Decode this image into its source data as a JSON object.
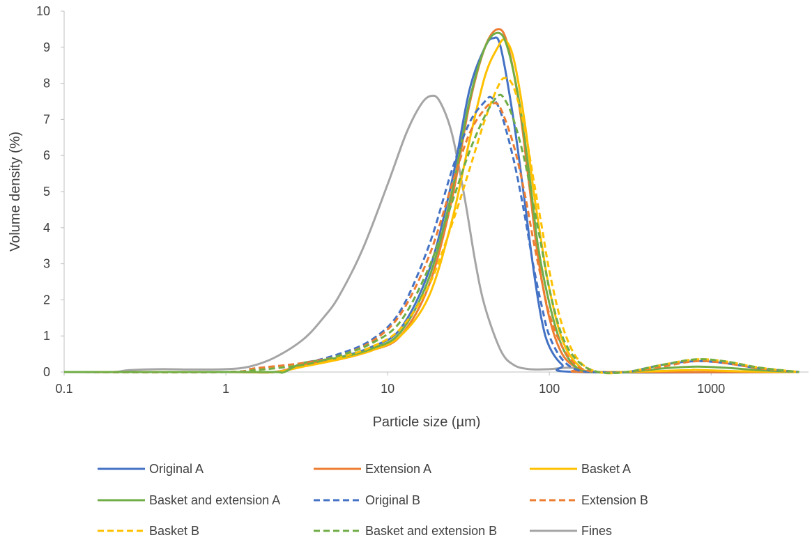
{
  "chart_data": {
    "type": "line",
    "title": "",
    "xlabel": "Particle size (µm)",
    "ylabel": "Volume density (%)",
    "x_scale": "log",
    "xlim": [
      0.1,
      4000
    ],
    "ylim": [
      0,
      10
    ],
    "x_ticks": [
      0.1,
      1,
      10,
      100,
      1000
    ],
    "x_tick_labels": [
      "0.1",
      "1",
      "10",
      "100",
      "1000"
    ],
    "y_ticks": [
      0,
      1,
      2,
      3,
      4,
      5,
      6,
      7,
      8,
      9,
      10
    ],
    "y_tick_labels": [
      "0",
      "1",
      "2",
      "3",
      "4",
      "5",
      "6",
      "7",
      "8",
      "9",
      "10"
    ],
    "grid": false,
    "legend_position": "bottom",
    "series": [
      {
        "name": "Original A",
        "color": "#4472C4",
        "dash": "solid",
        "points": [
          [
            0.1,
            0
          ],
          [
            1,
            0
          ],
          [
            2,
            0
          ],
          [
            3,
            0.2
          ],
          [
            5,
            0.4
          ],
          [
            8,
            0.7
          ],
          [
            12,
            1.2
          ],
          [
            18,
            2.8
          ],
          [
            25,
            5.3
          ],
          [
            32,
            7.8
          ],
          [
            40,
            9.0
          ],
          [
            45,
            9.25
          ],
          [
            50,
            9.0
          ],
          [
            60,
            7.0
          ],
          [
            70,
            4.8
          ],
          [
            80,
            2.8
          ],
          [
            90,
            1.4
          ],
          [
            100,
            0.7
          ],
          [
            120,
            0.2
          ],
          [
            150,
            0
          ],
          [
            3500,
            0
          ]
        ]
      },
      {
        "name": "Extension A",
        "color": "#ED7D31",
        "dash": "solid",
        "points": [
          [
            0.1,
            0
          ],
          [
            1,
            0
          ],
          [
            2,
            0
          ],
          [
            3,
            0.2
          ],
          [
            5,
            0.35
          ],
          [
            8,
            0.6
          ],
          [
            12,
            1.0
          ],
          [
            18,
            2.4
          ],
          [
            25,
            4.8
          ],
          [
            32,
            7.4
          ],
          [
            40,
            9.0
          ],
          [
            48,
            9.5
          ],
          [
            55,
            9.1
          ],
          [
            65,
            7.4
          ],
          [
            75,
            5.2
          ],
          [
            85,
            3.2
          ],
          [
            100,
            1.5
          ],
          [
            120,
            0.5
          ],
          [
            150,
            0.1
          ],
          [
            180,
            0
          ],
          [
            3500,
            0
          ]
        ]
      },
      {
        "name": "Basket A",
        "color": "#FFC000",
        "dash": "solid",
        "points": [
          [
            0.1,
            0
          ],
          [
            1,
            0
          ],
          [
            2,
            0
          ],
          [
            3,
            0.15
          ],
          [
            5,
            0.35
          ],
          [
            8,
            0.6
          ],
          [
            12,
            1.0
          ],
          [
            18,
            2.1
          ],
          [
            25,
            4.2
          ],
          [
            32,
            6.4
          ],
          [
            40,
            8.2
          ],
          [
            48,
            9.0
          ],
          [
            53,
            9.2
          ],
          [
            60,
            8.7
          ],
          [
            70,
            7.0
          ],
          [
            80,
            5.0
          ],
          [
            90,
            3.5
          ],
          [
            100,
            2.3
          ],
          [
            120,
            0.9
          ],
          [
            150,
            0.2
          ],
          [
            200,
            0
          ],
          [
            700,
            0.05
          ],
          [
            800,
            0.06
          ],
          [
            1500,
            0.02
          ],
          [
            3500,
            0
          ]
        ]
      },
      {
        "name": "Basket and extension A",
        "color": "#70AD47",
        "dash": "solid",
        "points": [
          [
            0.1,
            0
          ],
          [
            1,
            0
          ],
          [
            2,
            0
          ],
          [
            2.3,
            0
          ],
          [
            3,
            0.25
          ],
          [
            5,
            0.4
          ],
          [
            8,
            0.65
          ],
          [
            12,
            1.1
          ],
          [
            18,
            2.6
          ],
          [
            25,
            5.0
          ],
          [
            32,
            7.5
          ],
          [
            40,
            9.0
          ],
          [
            48,
            9.4
          ],
          [
            55,
            9.0
          ],
          [
            65,
            7.5
          ],
          [
            75,
            5.5
          ],
          [
            85,
            3.5
          ],
          [
            100,
            1.9
          ],
          [
            120,
            0.7
          ],
          [
            150,
            0.1
          ],
          [
            200,
            0
          ],
          [
            300,
            0
          ],
          [
            500,
            0.1
          ],
          [
            800,
            0.15
          ],
          [
            1200,
            0.12
          ],
          [
            2000,
            0.05
          ],
          [
            3500,
            0
          ]
        ]
      },
      {
        "name": "Original B",
        "color": "#4472C4",
        "dash": "dashed",
        "points": [
          [
            0.1,
            0
          ],
          [
            1,
            0
          ],
          [
            1.5,
            0.1
          ],
          [
            3,
            0.25
          ],
          [
            5,
            0.5
          ],
          [
            8,
            0.9
          ],
          [
            12,
            1.7
          ],
          [
            18,
            3.5
          ],
          [
            25,
            5.6
          ],
          [
            32,
            6.9
          ],
          [
            40,
            7.5
          ],
          [
            44,
            7.6
          ],
          [
            50,
            7.2
          ],
          [
            60,
            5.9
          ],
          [
            70,
            4.4
          ],
          [
            80,
            2.9
          ],
          [
            90,
            1.8
          ],
          [
            100,
            1.0
          ],
          [
            120,
            0.35
          ],
          [
            150,
            0.05
          ],
          [
            200,
            0
          ],
          [
            300,
            0
          ],
          [
            500,
            0.2
          ],
          [
            800,
            0.3
          ],
          [
            1200,
            0.25
          ],
          [
            2000,
            0.1
          ],
          [
            3500,
            0
          ]
        ]
      },
      {
        "name": "Extension B",
        "color": "#ED7D31",
        "dash": "dashed",
        "points": [
          [
            0.1,
            0
          ],
          [
            1,
            0
          ],
          [
            1.5,
            0.1
          ],
          [
            3,
            0.25
          ],
          [
            5,
            0.45
          ],
          [
            8,
            0.85
          ],
          [
            12,
            1.6
          ],
          [
            18,
            3.2
          ],
          [
            25,
            5.2
          ],
          [
            32,
            6.6
          ],
          [
            40,
            7.3
          ],
          [
            45,
            7.45
          ],
          [
            50,
            7.3
          ],
          [
            60,
            6.3
          ],
          [
            70,
            5.0
          ],
          [
            80,
            3.6
          ],
          [
            90,
            2.5
          ],
          [
            100,
            1.6
          ],
          [
            120,
            0.7
          ],
          [
            150,
            0.15
          ],
          [
            200,
            0
          ],
          [
            300,
            0
          ],
          [
            500,
            0.15
          ],
          [
            800,
            0.3
          ],
          [
            1200,
            0.25
          ],
          [
            2000,
            0.1
          ],
          [
            3500,
            0
          ]
        ]
      },
      {
        "name": "Basket B",
        "color": "#FFC000",
        "dash": "dashed",
        "points": [
          [
            0.1,
            0
          ],
          [
            1,
            0
          ],
          [
            1.5,
            0.05
          ],
          [
            3,
            0.2
          ],
          [
            5,
            0.4
          ],
          [
            8,
            0.7
          ],
          [
            12,
            1.2
          ],
          [
            18,
            2.4
          ],
          [
            25,
            4.1
          ],
          [
            32,
            5.6
          ],
          [
            40,
            7.0
          ],
          [
            48,
            7.9
          ],
          [
            53,
            8.15
          ],
          [
            60,
            7.9
          ],
          [
            70,
            6.8
          ],
          [
            80,
            5.3
          ],
          [
            90,
            4.0
          ],
          [
            100,
            2.8
          ],
          [
            120,
            1.3
          ],
          [
            150,
            0.35
          ],
          [
            200,
            0
          ],
          [
            300,
            0
          ],
          [
            500,
            0.2
          ],
          [
            800,
            0.35
          ],
          [
            1200,
            0.3
          ],
          [
            2000,
            0.12
          ],
          [
            3500,
            0
          ]
        ]
      },
      {
        "name": "Basket and extension B",
        "color": "#70AD47",
        "dash": "dashed",
        "points": [
          [
            0.1,
            0
          ],
          [
            1,
            0
          ],
          [
            1.5,
            0.05
          ],
          [
            3,
            0.2
          ],
          [
            5,
            0.45
          ],
          [
            8,
            0.8
          ],
          [
            12,
            1.4
          ],
          [
            18,
            2.9
          ],
          [
            25,
            4.7
          ],
          [
            32,
            6.1
          ],
          [
            40,
            7.1
          ],
          [
            48,
            7.65
          ],
          [
            53,
            7.55
          ],
          [
            60,
            7.0
          ],
          [
            70,
            5.9
          ],
          [
            80,
            4.6
          ],
          [
            90,
            3.4
          ],
          [
            100,
            2.3
          ],
          [
            120,
            1.0
          ],
          [
            150,
            0.3
          ],
          [
            200,
            0
          ],
          [
            300,
            0
          ],
          [
            500,
            0.2
          ],
          [
            800,
            0.35
          ],
          [
            1200,
            0.3
          ],
          [
            2000,
            0.12
          ],
          [
            3500,
            0
          ]
        ]
      },
      {
        "name": "Fines",
        "color": "#A5A5A5",
        "dash": "solid",
        "points": [
          [
            0.1,
            0
          ],
          [
            0.2,
            0
          ],
          [
            0.25,
            0.05
          ],
          [
            0.4,
            0.08
          ],
          [
            0.6,
            0.07
          ],
          [
            1,
            0.08
          ],
          [
            1.4,
            0.15
          ],
          [
            2,
            0.4
          ],
          [
            3,
            0.9
          ],
          [
            4,
            1.5
          ],
          [
            5,
            2.1
          ],
          [
            7,
            3.4
          ],
          [
            10,
            5.2
          ],
          [
            13,
            6.6
          ],
          [
            16,
            7.4
          ],
          [
            18.5,
            7.65
          ],
          [
            21,
            7.5
          ],
          [
            25,
            6.6
          ],
          [
            30,
            4.8
          ],
          [
            35,
            3.0
          ],
          [
            40,
            1.8
          ],
          [
            50,
            0.6
          ],
          [
            60,
            0.2
          ],
          [
            75,
            0.08
          ],
          [
            100,
            0.08
          ],
          [
            130,
            0.12
          ],
          [
            160,
            0.08
          ],
          [
            200,
            0
          ],
          [
            3500,
            0
          ]
        ]
      }
    ]
  }
}
